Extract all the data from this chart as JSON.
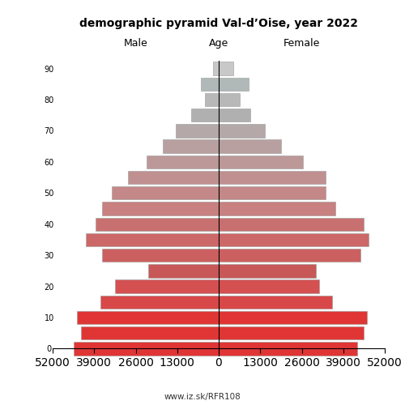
{
  "title": "demographic pyramid Val-d’Oise, year 2022",
  "label_male": "Male",
  "label_female": "Female",
  "label_age": "Age",
  "footer": "www.iz.sk/RFR108",
  "age_groups": [
    0,
    5,
    10,
    15,
    20,
    25,
    30,
    35,
    40,
    45,
    50,
    55,
    60,
    65,
    70,
    75,
    80,
    85,
    90
  ],
  "male": [
    45500,
    43000,
    44500,
    37000,
    32500,
    22000,
    36500,
    41500,
    38500,
    36500,
    33500,
    28500,
    22500,
    17500,
    13500,
    8500,
    4200,
    5500,
    1800
  ],
  "female": [
    43500,
    45500,
    46500,
    35500,
    31500,
    30500,
    44500,
    47000,
    45500,
    36500,
    33500,
    33500,
    26500,
    19500,
    14500,
    10000,
    6500,
    9500,
    4500
  ],
  "xlim": 52000,
  "xticks": [
    52000,
    39000,
    26000,
    13000,
    0,
    13000,
    26000,
    39000,
    52000
  ],
  "age_tick_labels": [
    "0",
    "10",
    "20",
    "30",
    "40",
    "50",
    "60",
    "70",
    "80",
    "90"
  ],
  "age_tick_positions": [
    0,
    2,
    4,
    6,
    8,
    10,
    12,
    14,
    16,
    18
  ],
  "bar_colors": [
    "#e03535",
    "#e03535",
    "#e03535",
    "#d84848",
    "#d55050",
    "#c85858",
    "#cc6060",
    "#cc6868",
    "#c87070",
    "#c88080",
    "#c48888",
    "#c09090",
    "#bc9898",
    "#b8a0a0",
    "#b4a8a8",
    "#b0b0b0",
    "#b8b8b8",
    "#b0b8b8",
    "#c8c8c8"
  ],
  "bar_height": 0.85,
  "figsize": [
    5.0,
    5.0
  ],
  "dpi": 100
}
